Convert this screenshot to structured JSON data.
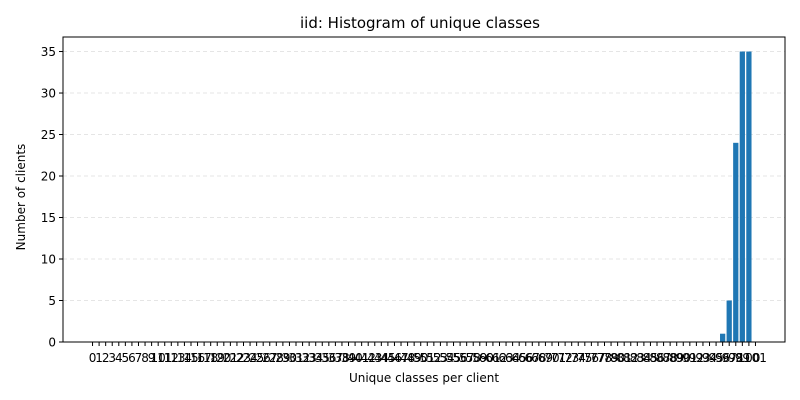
{
  "chart_data": {
    "type": "bar",
    "title": "iid: Histogram of unique classes",
    "xlabel": "Unique classes per client",
    "ylabel": "Number of clients",
    "x": [
      0,
      1,
      2,
      3,
      4,
      5,
      6,
      7,
      8,
      9,
      10,
      11,
      12,
      13,
      14,
      15,
      16,
      17,
      18,
      19,
      20,
      21,
      22,
      23,
      24,
      25,
      26,
      27,
      28,
      29,
      30,
      31,
      32,
      33,
      34,
      35,
      36,
      37,
      38,
      39,
      40,
      41,
      42,
      43,
      44,
      45,
      46,
      47,
      48,
      49,
      50,
      51,
      52,
      53,
      54,
      55,
      56,
      57,
      58,
      59,
      60,
      61,
      62,
      63,
      64,
      65,
      66,
      67,
      68,
      69,
      70,
      71,
      72,
      73,
      74,
      75,
      76,
      77,
      78,
      79,
      80,
      81,
      82,
      83,
      84,
      85,
      86,
      87,
      88,
      89,
      90,
      91,
      92,
      93,
      94,
      95,
      96,
      97,
      98,
      99,
      100,
      101
    ],
    "values": [
      0,
      0,
      0,
      0,
      0,
      0,
      0,
      0,
      0,
      0,
      0,
      0,
      0,
      0,
      0,
      0,
      0,
      0,
      0,
      0,
      0,
      0,
      0,
      0,
      0,
      0,
      0,
      0,
      0,
      0,
      0,
      0,
      0,
      0,
      0,
      0,
      0,
      0,
      0,
      0,
      0,
      0,
      0,
      0,
      0,
      0,
      0,
      0,
      0,
      0,
      0,
      0,
      0,
      0,
      0,
      0,
      0,
      0,
      0,
      0,
      0,
      0,
      0,
      0,
      0,
      0,
      0,
      0,
      0,
      0,
      0,
      0,
      0,
      0,
      0,
      0,
      0,
      0,
      0,
      0,
      0,
      0,
      0,
      0,
      0,
      0,
      0,
      0,
      0,
      0,
      0,
      0,
      0,
      0,
      0,
      0,
      1,
      5,
      24,
      35,
      35,
      0
    ],
    "yticks": [
      0,
      5,
      10,
      15,
      20,
      25,
      30,
      35
    ],
    "ylim": [
      0,
      36.75
    ],
    "xlim": [
      -4.5,
      105.5
    ],
    "grid": "y-dashed",
    "legend": "none",
    "bar_color": "#1f77b4",
    "grid_color": "#dddddd"
  }
}
